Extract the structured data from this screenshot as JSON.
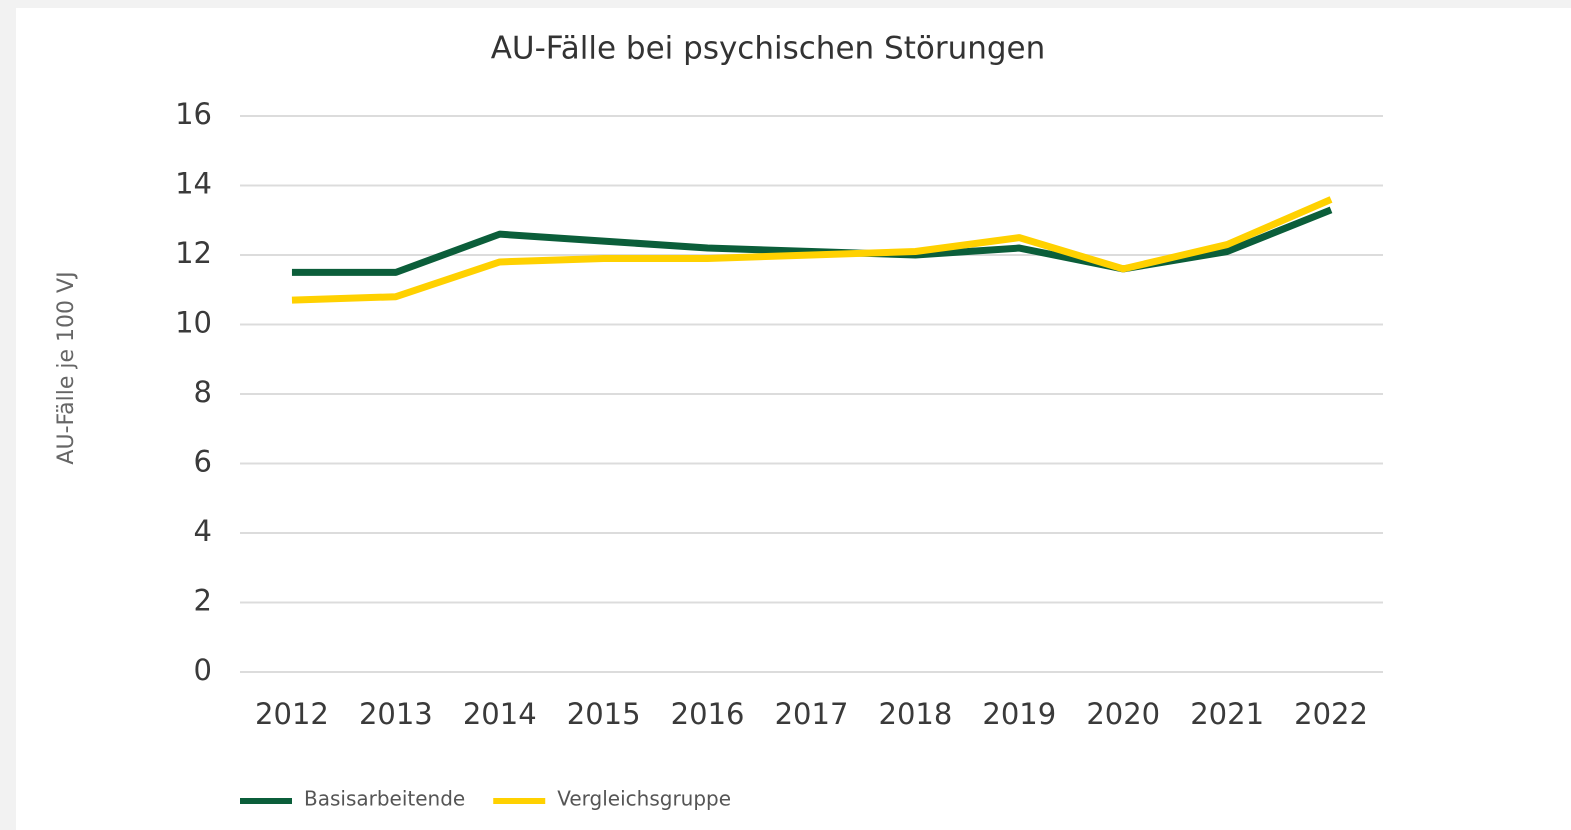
{
  "chart_data": {
    "type": "line",
    "title": "AU-Fälle bei psychischen Störungen",
    "ylabel": "AU-Fälle je 100 VJ",
    "categories": [
      "2012",
      "2013",
      "2014",
      "2015",
      "2016",
      "2017",
      "2018",
      "2019",
      "2020",
      "2021",
      "2022"
    ],
    "series": [
      {
        "name": "Basisarbeitende",
        "color": "#0b5e3a",
        "values": [
          11.5,
          11.5,
          12.6,
          12.4,
          12.2,
          12.1,
          12.0,
          12.2,
          11.6,
          12.1,
          13.3
        ]
      },
      {
        "name": "Vergleichsgruppe",
        "color": "#ffd100",
        "values": [
          10.7,
          10.8,
          11.8,
          11.9,
          11.9,
          12.0,
          12.1,
          12.5,
          11.6,
          12.3,
          13.6
        ]
      }
    ],
    "ylim": [
      0,
      16
    ],
    "yticks": [
      0,
      2,
      4,
      6,
      8,
      10,
      12,
      14,
      16
    ],
    "grid": true
  }
}
